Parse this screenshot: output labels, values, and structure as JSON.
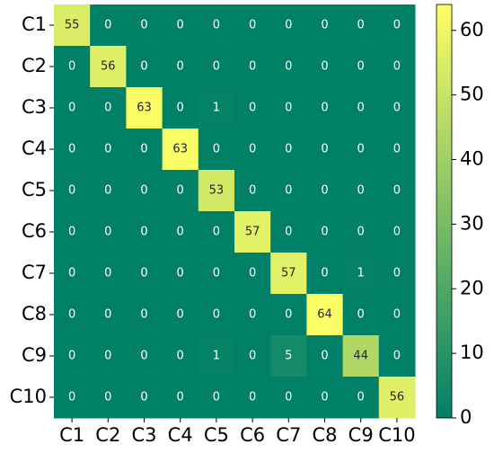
{
  "chart_data": {
    "type": "heatmap",
    "x_categories": [
      "C1",
      "C2",
      "C3",
      "C4",
      "C5",
      "C6",
      "C7",
      "C8",
      "C9",
      "C10"
    ],
    "y_categories": [
      "C1",
      "C2",
      "C3",
      "C4",
      "C5",
      "C6",
      "C7",
      "C8",
      "C9",
      "C10"
    ],
    "values": [
      [
        55,
        0,
        0,
        0,
        0,
        0,
        0,
        0,
        0,
        0
      ],
      [
        0,
        56,
        0,
        0,
        0,
        0,
        0,
        0,
        0,
        0
      ],
      [
        0,
        0,
        63,
        0,
        1,
        0,
        0,
        0,
        0,
        0
      ],
      [
        0,
        0,
        0,
        63,
        0,
        0,
        0,
        0,
        0,
        0
      ],
      [
        0,
        0,
        0,
        0,
        53,
        0,
        0,
        0,
        0,
        0
      ],
      [
        0,
        0,
        0,
        0,
        0,
        57,
        0,
        0,
        0,
        0
      ],
      [
        0,
        0,
        0,
        0,
        0,
        0,
        57,
        0,
        1,
        0
      ],
      [
        0,
        0,
        0,
        0,
        0,
        0,
        0,
        64,
        0,
        0
      ],
      [
        0,
        0,
        0,
        0,
        1,
        0,
        5,
        0,
        44,
        0
      ],
      [
        0,
        0,
        0,
        0,
        0,
        0,
        0,
        0,
        0,
        56
      ]
    ],
    "zlim": [
      0,
      64
    ],
    "zticks": [
      0,
      10,
      20,
      30,
      40,
      50,
      60
    ],
    "colors": [
      "#008066",
      "#ffff66"
    ]
  }
}
